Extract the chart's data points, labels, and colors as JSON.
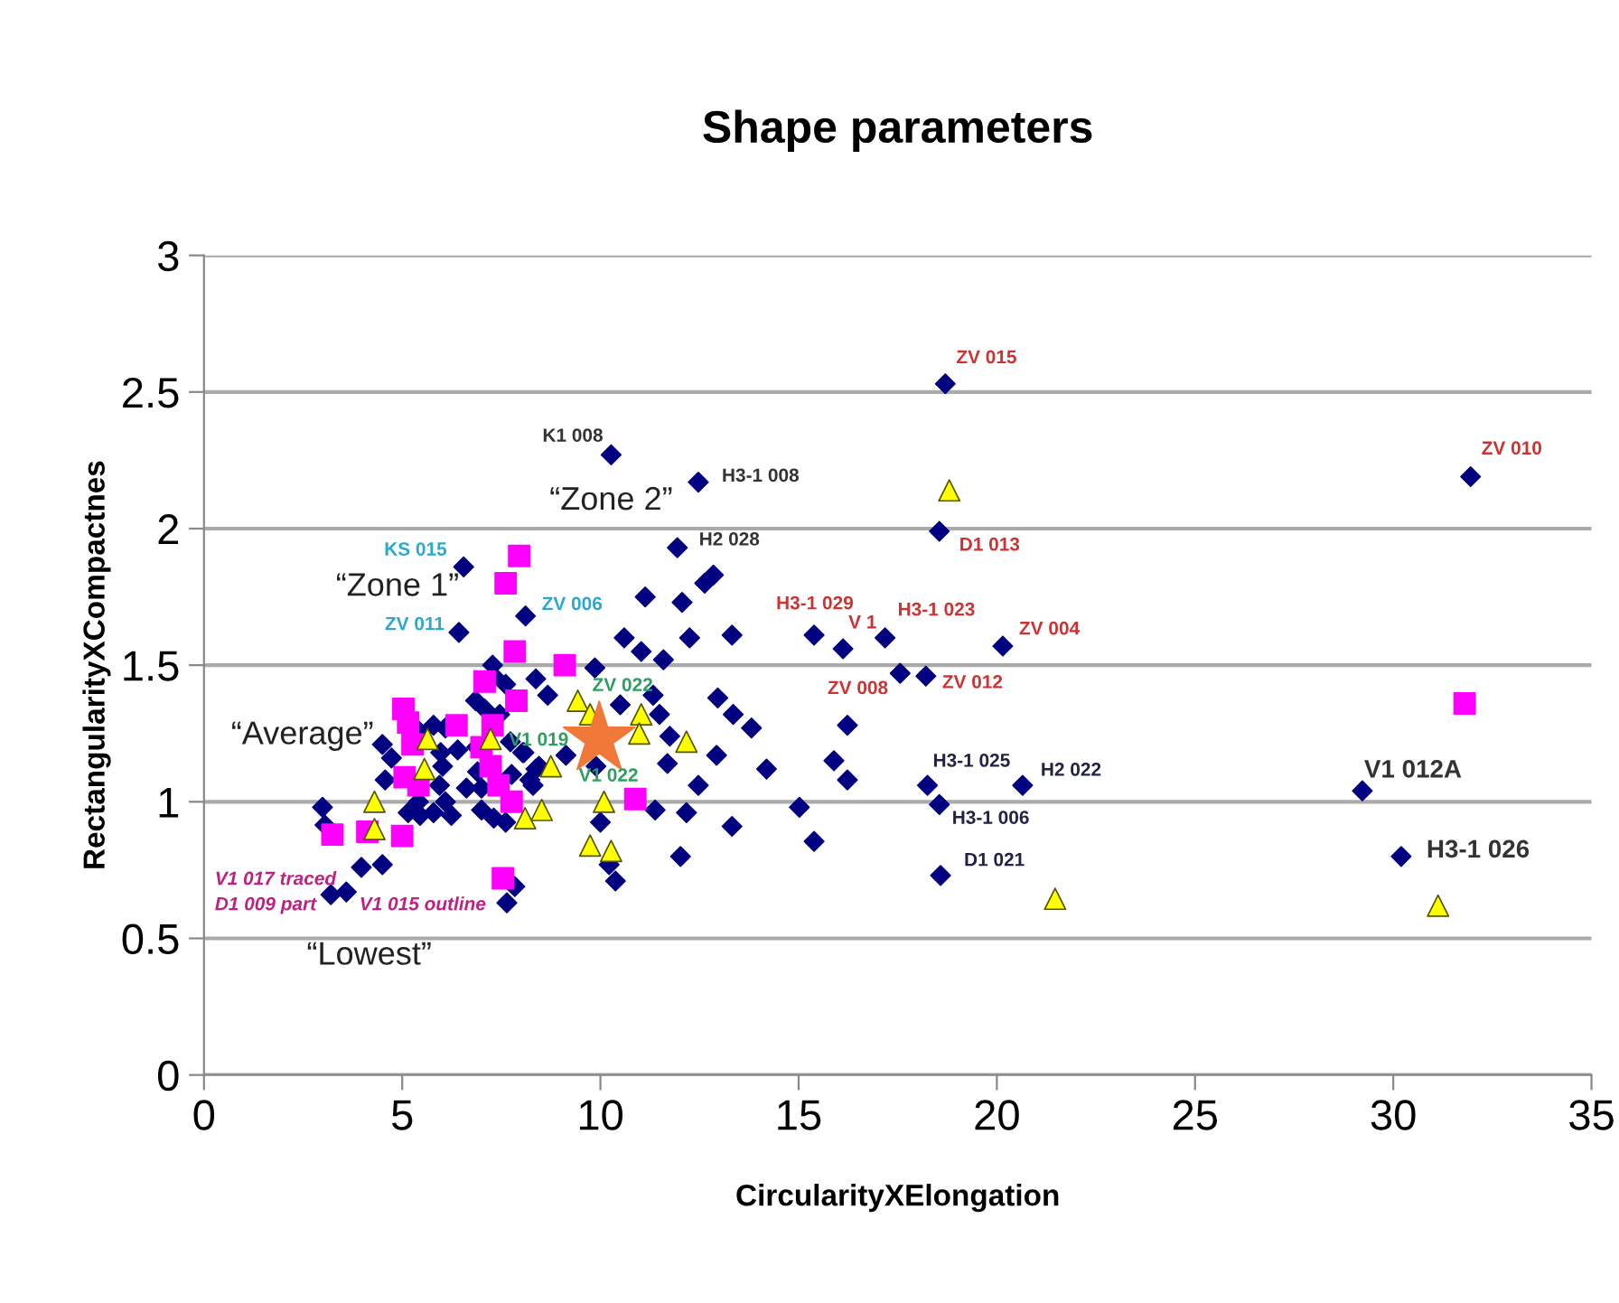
{
  "chart_data": {
    "type": "scatter",
    "title": "Shape parameters",
    "xlabel": "CircularityXElongation",
    "ylabel": "RectangularityXCompactnes",
    "xlim": [
      0,
      35
    ],
    "ylim": [
      0,
      3
    ],
    "xticks": [
      0,
      5,
      10,
      15,
      20,
      25,
      30,
      35
    ],
    "yticks": [
      0,
      0.5,
      1,
      1.5,
      2,
      2.5,
      3
    ],
    "grid": "y",
    "legend": false,
    "series": [
      {
        "color": "#000080",
        "marker": "diamond",
        "x": [
          18.7,
          10.27,
          12.47,
          18.55,
          11.94,
          12.85,
          12.63,
          11.13,
          12.06,
          8.11,
          10.6,
          11.03,
          11.59,
          12.25,
          13.32,
          15.39,
          16.12,
          17.18,
          20.15,
          17.56,
          18.21,
          9.86,
          8.37,
          8.67,
          10.5,
          11.33,
          11.49,
          12.96,
          13.35,
          13.81,
          16.23,
          11.75,
          11.69,
          12.93,
          14.19,
          15.89,
          16.23,
          12.47,
          8.04,
          8.37,
          8.3,
          11.38,
          12.17,
          10.0,
          13.32,
          15.02,
          15.39,
          12.02,
          10.22,
          10.38,
          18.25,
          18.55,
          20.65,
          18.58,
          31.95,
          29.22,
          30.2,
          6.55,
          6.43,
          7.28,
          7.31,
          7.61,
          6.85,
          7.08,
          7.46,
          5.79,
          6.09,
          5.41,
          4.5,
          6.4,
          4.73,
          5.97,
          6.88,
          7.73,
          8.07,
          8.45,
          9.13,
          9.89,
          4.57,
          6.02,
          6.9,
          5.94,
          6.09,
          6.62,
          7.0,
          7.76,
          8.22,
          5.41,
          5.15,
          5.45,
          5.79,
          6.24,
          7.0,
          7.31,
          7.61,
          2.99,
          3.05,
          3.97,
          4.5,
          3.2,
          3.59,
          7.84,
          7.64
        ],
        "values": [
          2.53,
          2.27,
          2.17,
          1.99,
          1.93,
          1.83,
          1.8,
          1.75,
          1.73,
          1.68,
          1.6,
          1.55,
          1.52,
          1.6,
          1.61,
          1.61,
          1.56,
          1.6,
          1.57,
          1.47,
          1.46,
          1.49,
          1.45,
          1.39,
          1.355,
          1.39,
          1.32,
          1.38,
          1.32,
          1.27,
          1.28,
          1.24,
          1.14,
          1.17,
          1.12,
          1.15,
          1.08,
          1.06,
          1.18,
          1.12,
          1.06,
          0.97,
          0.96,
          0.925,
          0.91,
          0.98,
          0.855,
          0.8,
          0.77,
          0.71,
          1.06,
          0.99,
          1.06,
          0.73,
          2.19,
          1.04,
          0.8,
          1.86,
          1.62,
          1.5,
          1.46,
          1.43,
          1.37,
          1.34,
          1.32,
          1.28,
          1.27,
          1.26,
          1.21,
          1.19,
          1.16,
          1.18,
          1.2,
          1.22,
          1.18,
          1.13,
          1.17,
          1.13,
          1.08,
          1.13,
          1.11,
          1.06,
          1.0,
          1.05,
          1.05,
          1.1,
          1.08,
          1.0,
          0.96,
          0.95,
          0.96,
          0.95,
          0.97,
          0.94,
          0.925,
          0.98,
          0.915,
          0.76,
          0.77,
          0.66,
          0.67,
          0.69,
          0.63
        ]
      },
      {
        "color": "#ff00ff",
        "marker": "square",
        "x": [
          7.95,
          7.61,
          7.84,
          9.1,
          7.08,
          7.88,
          5.03,
          5.15,
          5.26,
          6.37,
          7.28,
          7.0,
          7.23,
          5.06,
          5.41,
          7.43,
          7.76,
          10.88,
          3.24,
          4.12,
          5.0,
          7.54,
          31.8
        ],
        "values": [
          1.9,
          1.8,
          1.55,
          1.5,
          1.44,
          1.37,
          1.34,
          1.29,
          1.21,
          1.28,
          1.28,
          1.2,
          1.13,
          1.09,
          1.06,
          1.06,
          1.0,
          1.01,
          0.88,
          0.89,
          0.875,
          0.72,
          1.36
        ]
      },
      {
        "color": "#ffff00",
        "marker": "triangle",
        "x": [
          5.64,
          5.56,
          7.23,
          4.3,
          4.3,
          8.1,
          8.52,
          8.75,
          9.43,
          9.74,
          10.09,
          9.74,
          10.27,
          11.03,
          10.98,
          12.17,
          18.8,
          21.47,
          31.13
        ],
        "values": [
          1.23,
          1.12,
          1.23,
          1.0,
          0.9,
          0.94,
          0.97,
          1.13,
          1.37,
          1.32,
          1.0,
          0.84,
          0.82,
          1.32,
          1.25,
          1.22,
          2.14,
          0.645,
          0.62
        ]
      },
      {
        "color": "#f07838",
        "marker": "star",
        "x": [
          9.97
        ],
        "values": [
          1.23
        ]
      }
    ],
    "annotations": [
      {
        "text": "KS 015",
        "x": 6.55,
        "y": 1.86
      },
      {
        "text": "ZV 011",
        "x": 6.43,
        "y": 1.62
      },
      {
        "text": "ZV 006",
        "x": 8.11,
        "y": 1.68
      },
      "“Zone 1”",
      "“Zone 2”",
      "“Average”",
      "“Lowest”",
      "V1 017 traced",
      "D1 009 part",
      "V1 015 outline",
      {
        "text": "V1 019",
        "x": 9.97,
        "y": 1.23
      },
      {
        "text": "ZV 022",
        "x": 9.43,
        "y": 1.37
      },
      {
        "text": "V1 022",
        "x": 10.09,
        "y": 1.0
      },
      {
        "text": "K1 008",
        "x": 10.27,
        "y": 2.27
      },
      {
        "text": "H3-1 008",
        "x": 12.47,
        "y": 2.17
      },
      {
        "text": "H2 028",
        "x": 11.94,
        "y": 1.93
      },
      {
        "text": "ZV 015",
        "x": 18.7,
        "y": 2.53
      },
      {
        "text": "D1 013",
        "x": 18.55,
        "y": 1.99
      },
      {
        "text": "H3-1 029",
        "x": 15.39,
        "y": 1.61
      },
      {
        "text": "V 1",
        "x": 16.12,
        "y": 1.56
      },
      {
        "text": "H3-1 023",
        "x": 17.18,
        "y": 1.6
      },
      {
        "text": "ZV 004",
        "x": 20.15,
        "y": 1.57
      },
      {
        "text": "ZV 008",
        "x": 16.23,
        "y": 1.28
      },
      {
        "text": "ZV 012",
        "x": 18.21,
        "y": 1.46
      },
      {
        "text": "H3-1 025",
        "x": 18.25,
        "y": 1.06
      },
      {
        "text": "H2 022",
        "x": 20.65,
        "y": 1.06
      },
      {
        "text": "H3-1 006",
        "x": 18.55,
        "y": 0.99
      },
      {
        "text": "D1 021",
        "x": 18.58,
        "y": 0.73
      },
      {
        "text": "ZV 010",
        "x": 31.95,
        "y": 2.19
      },
      {
        "text": "V1 012A",
        "x": 29.22,
        "y": 1.04
      },
      {
        "text": "H3-1 026",
        "x": 30.2,
        "y": 0.8
      }
    ]
  }
}
